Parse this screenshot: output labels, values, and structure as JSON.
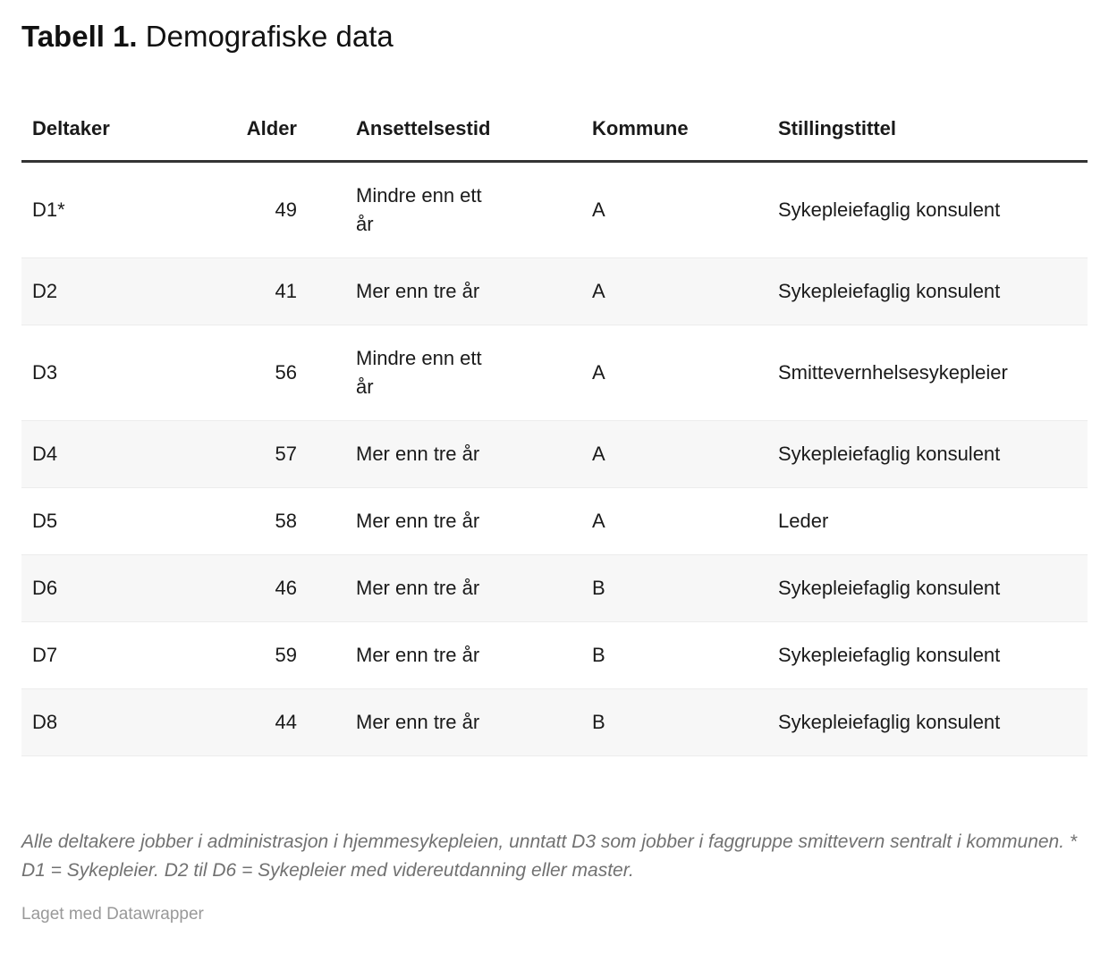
{
  "chart_data": {
    "type": "table",
    "title": "Tabell 1. Demografiske data",
    "title_bold_prefix": "Tabell 1.",
    "title_rest": "Demografiske data",
    "columns": [
      {
        "label": "Deltaker",
        "align": "left"
      },
      {
        "label": "Alder",
        "align": "right"
      },
      {
        "label": "Ansettelsestid",
        "align": "left"
      },
      {
        "label": "Kommune",
        "align": "left"
      },
      {
        "label": "Stillingstittel",
        "align": "left"
      }
    ],
    "rows": [
      [
        "D1*",
        "49",
        "Mindre enn ett år",
        "A",
        "Sykepleiefaglig konsulent"
      ],
      [
        "D2",
        "41",
        "Mer enn tre år",
        "A",
        "Sykepleiefaglig konsulent"
      ],
      [
        "D3",
        "56",
        "Mindre enn ett år",
        "A",
        "Smittevernhelsesykepleier"
      ],
      [
        "D4",
        "57",
        "Mer enn tre år",
        "A",
        "Sykepleiefaglig konsulent"
      ],
      [
        "D5",
        "58",
        "Mer enn tre år",
        "A",
        "Leder"
      ],
      [
        "D6",
        "46",
        "Mer enn tre år",
        "B",
        "Sykepleiefaglig konsulent"
      ],
      [
        "D7",
        "59",
        "Mer enn tre år",
        "B",
        "Sykepleiefaglig konsulent"
      ],
      [
        "D8",
        "44",
        "Mer enn tre år",
        "B",
        "Sykepleiefaglig konsulent"
      ]
    ],
    "striped_rows": [
      "D2",
      "D4",
      "D6",
      "D8"
    ],
    "notes": "Alle deltakere jobber i administrasjon i hjemmesykepleien, unntatt D3 som jobber i faggruppe smittevern sentralt i kommunen. * D1 = Sykepleier. D2 til D6 = Sykepleier med videreutdanning eller master.",
    "attribution": "Laget med Datawrapper"
  },
  "colors": {
    "text": "#1a1a1a",
    "header_rule": "#333333",
    "stripe": "#f7f7f7",
    "row_border": "#ececec",
    "notes_text": "#717171",
    "attribution_text": "#999999"
  }
}
